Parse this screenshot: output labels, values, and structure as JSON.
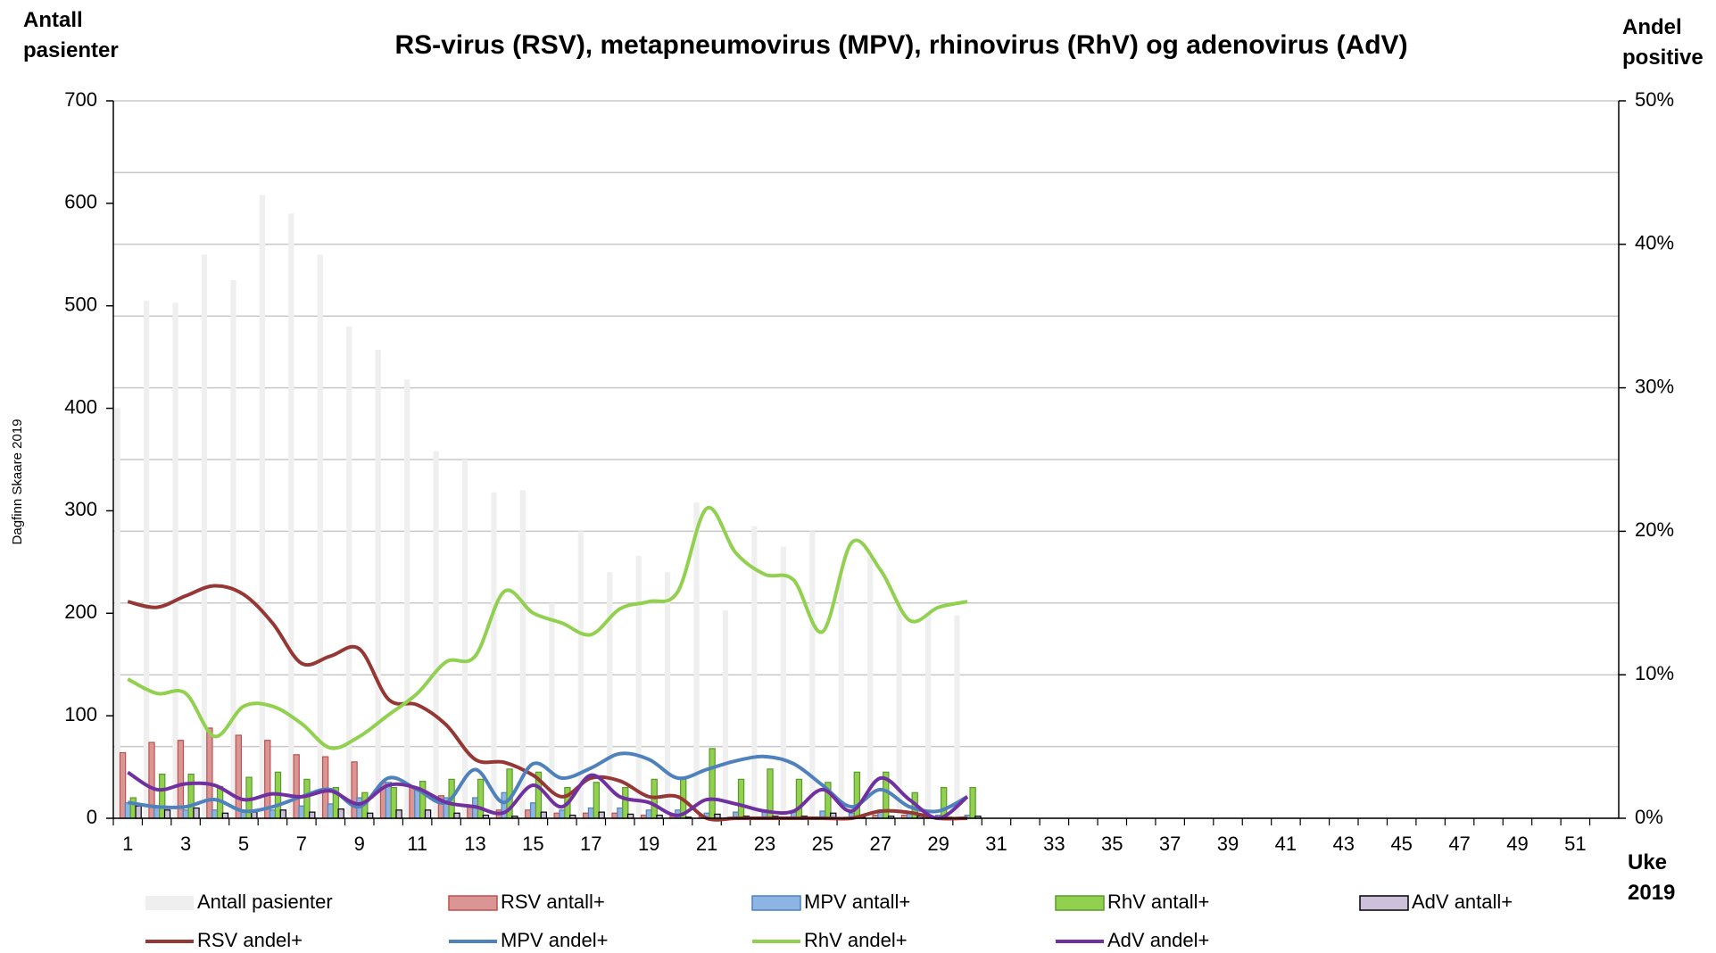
{
  "chart_data": {
    "type": "bar",
    "title": "RS-virus (RSV), metapneumovirus (MPV), rhinovirus (RhV) og adenovirus (AdV)",
    "y_label": "Antall pasienter",
    "y2_label": "Andel positive",
    "x_label": "Uke 2019",
    "credit": "Dagfinn Skaare 2019",
    "categories": [
      1,
      null,
      3,
      null,
      5,
      null,
      7,
      null,
      9,
      null,
      11,
      null,
      13,
      null,
      15,
      null,
      17,
      null,
      19,
      null,
      21,
      null,
      23,
      null,
      25,
      null,
      27,
      null,
      29,
      null,
      31,
      null,
      33,
      null,
      35,
      null,
      37,
      null,
      39,
      null,
      41,
      null,
      43,
      null,
      45,
      null,
      47,
      null,
      49,
      null,
      51,
      null
    ],
    "ylim": [
      0,
      700
    ],
    "yticks": [
      0,
      100,
      200,
      300,
      400,
      500,
      600,
      700
    ],
    "y2lim": [
      0,
      50
    ],
    "y2ticks": [
      {
        "value": 0,
        "label": "0%"
      },
      {
        "value": 10,
        "label": "10%"
      },
      {
        "value": 20,
        "label": "20%"
      },
      {
        "value": 30,
        "label": "30%"
      },
      {
        "value": 40,
        "label": "40%"
      },
      {
        "value": 50,
        "label": "50%"
      }
    ],
    "y2_minor_ticks": [
      5,
      15,
      25,
      35,
      45
    ],
    "grid": true,
    "legend": "bottom",
    "series": [
      {
        "name": "Antall pasienter",
        "type": "bar",
        "color": "#efefef",
        "values": [
          400,
          505,
          503,
          550,
          525,
          608,
          590,
          550,
          480,
          457,
          428,
          358,
          350,
          318,
          320,
          210,
          280,
          240,
          256,
          240,
          308,
          203,
          285,
          265,
          280,
          235,
          255,
          205,
          200,
          198,
          null,
          null,
          null,
          null,
          null,
          null,
          null,
          null,
          null,
          null,
          null,
          null,
          null,
          null,
          null,
          null,
          null,
          null,
          null,
          null,
          null,
          null
        ]
      },
      {
        "name": "RSV antall+",
        "type": "bar",
        "color": "#da9694",
        "edgecolor": "#c0504d",
        "values": [
          64,
          74,
          76,
          88,
          81,
          76,
          62,
          60,
          55,
          35,
          30,
          22,
          12,
          8,
          8,
          5,
          5,
          5,
          3,
          2,
          2,
          1,
          1,
          0,
          1,
          1,
          3,
          3,
          0,
          1,
          null,
          null,
          null,
          null,
          null,
          null,
          null,
          null,
          null,
          null,
          null,
          null,
          null,
          null,
          null,
          null,
          null,
          null,
          null,
          null,
          null,
          null
        ]
      },
      {
        "name": "MPV antall+",
        "type": "bar",
        "color": "#8db4e2",
        "edgecolor": "#4f81bd",
        "values": [
          15,
          10,
          8,
          8,
          6,
          8,
          12,
          14,
          20,
          35,
          30,
          20,
          20,
          25,
          15,
          8,
          10,
          10,
          8,
          8,
          5,
          6,
          7,
          6,
          7,
          5,
          8,
          5,
          3,
          3,
          null,
          null,
          null,
          null,
          null,
          null,
          null,
          null,
          null,
          null,
          null,
          null,
          null,
          null,
          null,
          null,
          null,
          null,
          null,
          null,
          null,
          null
        ]
      },
      {
        "name": "RhV antall+",
        "type": "bar",
        "color": "#92d050",
        "edgecolor": "#5a9a2a",
        "values": [
          20,
          43,
          43,
          31,
          40,
          45,
          38,
          30,
          25,
          30,
          36,
          38,
          38,
          48,
          45,
          30,
          35,
          30,
          38,
          40,
          68,
          38,
          48,
          38,
          35,
          45,
          45,
          25,
          30,
          30,
          null,
          null,
          null,
          null,
          null,
          null,
          null,
          null,
          null,
          null,
          null,
          null,
          null,
          null,
          null,
          null,
          null,
          null,
          null,
          null,
          null,
          null
        ]
      },
      {
        "name": "AdV antall+",
        "type": "bar",
        "color": "#ccc0da",
        "edgecolor": "#000000",
        "values": [
          12,
          8,
          10,
          5,
          6,
          8,
          6,
          9,
          5,
          8,
          8,
          5,
          3,
          2,
          6,
          3,
          6,
          4,
          3,
          1,
          4,
          2,
          2,
          2,
          5,
          1,
          2,
          2,
          1,
          2,
          null,
          null,
          null,
          null,
          null,
          null,
          null,
          null,
          null,
          null,
          null,
          null,
          null,
          null,
          null,
          null,
          null,
          null,
          null,
          null,
          null,
          null
        ]
      },
      {
        "name": "RSV andel+",
        "type": "line",
        "axis": "y2",
        "color": "#953735",
        "values": [
          15.1,
          14.7,
          15.5,
          16.2,
          15.6,
          13.6,
          10.8,
          11.3,
          11.8,
          8.3,
          7.9,
          6.5,
          4.1,
          3.9,
          3.0,
          1.5,
          2.8,
          2.6,
          1.5,
          1.5,
          0,
          0,
          0,
          0,
          0,
          0,
          0.5,
          0.4,
          0,
          0,
          null,
          null,
          null,
          null,
          null,
          null,
          null,
          null,
          null,
          null,
          null,
          null,
          null,
          null,
          null,
          null,
          null,
          null,
          null,
          null,
          null,
          null
        ]
      },
      {
        "name": "MPV andel+",
        "type": "line",
        "axis": "y2",
        "color": "#4f81bd",
        "values": [
          1.1,
          0.8,
          0.8,
          1.3,
          0.5,
          0.8,
          1.5,
          2.0,
          0.8,
          2.8,
          2.0,
          1.1,
          3.4,
          1.1,
          3.8,
          2.8,
          3.5,
          4.5,
          4.1,
          2.8,
          3.4,
          4.0,
          4.3,
          3.8,
          2.3,
          0.8,
          2.0,
          0.8,
          0.5,
          1.5,
          null,
          null,
          null,
          null,
          null,
          null,
          null,
          null,
          null,
          null,
          null,
          null,
          null,
          null,
          null,
          null,
          null,
          null,
          null,
          null,
          null,
          null
        ]
      },
      {
        "name": "RhV andel+",
        "type": "line",
        "axis": "y2",
        "color": "#92d050",
        "values": [
          9.7,
          8.7,
          8.7,
          5.7,
          7.8,
          7.8,
          6.6,
          4.9,
          5.7,
          7.2,
          8.7,
          10.9,
          11.3,
          15.8,
          14.3,
          13.6,
          12.8,
          14.6,
          15.1,
          15.8,
          21.6,
          18.5,
          17.0,
          16.6,
          13.0,
          19.2,
          17.3,
          13.8,
          14.7,
          15.1,
          null,
          null,
          null,
          null,
          null,
          null,
          null,
          null,
          null,
          null,
          null,
          null,
          null,
          null,
          null,
          null,
          null,
          null,
          null,
          null,
          null,
          null
        ]
      },
      {
        "name": "AdV andel+",
        "type": "line",
        "axis": "y2",
        "color": "#7030a0",
        "values": [
          3.2,
          2.0,
          2.4,
          2.3,
          1.3,
          1.7,
          1.5,
          1.9,
          1.0,
          2.3,
          2.1,
          1.1,
          0.8,
          0.4,
          2.3,
          0.8,
          3.0,
          1.5,
          1.1,
          0.2,
          1.3,
          1.0,
          0.5,
          0.5,
          2.0,
          0.5,
          2.8,
          1.3,
          0,
          1.5,
          null,
          null,
          null,
          null,
          null,
          null,
          null,
          null,
          null,
          null,
          null,
          null,
          null,
          null,
          null,
          null,
          null,
          null,
          null,
          null,
          null,
          null
        ]
      }
    ]
  }
}
